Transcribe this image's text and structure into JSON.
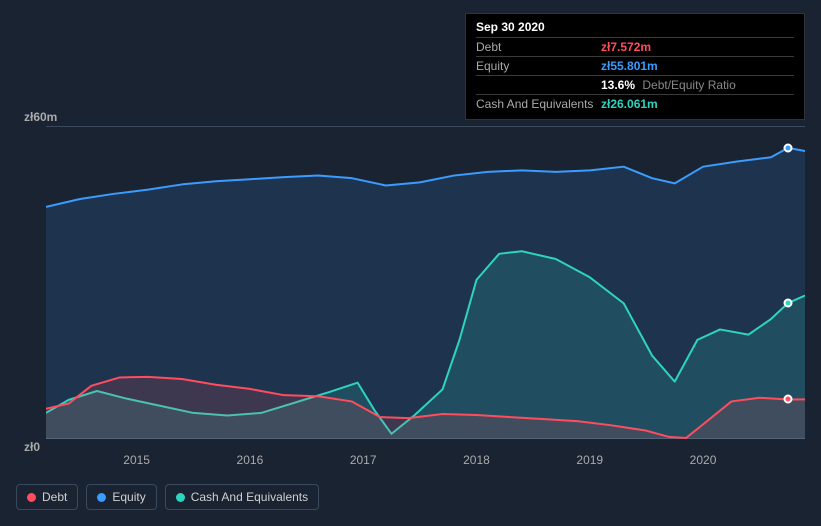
{
  "tooltip": {
    "date": "Sep 30 2020",
    "rows": [
      {
        "label": "Debt",
        "value": "zł7.572m",
        "cls": "debt"
      },
      {
        "label": "Equity",
        "value": "zł55.801m",
        "cls": "equity"
      },
      {
        "label": "",
        "value": "13.6%",
        "sub": "Debt/Equity Ratio",
        "cls": "ratio"
      },
      {
        "label": "Cash And Equivalents",
        "value": "zł26.061m",
        "cls": "cash"
      }
    ]
  },
  "chart": {
    "type": "area",
    "background_color": "#1a2332",
    "grid_color": "#3a4a5c",
    "xlim": [
      2014.2,
      2020.9
    ],
    "ylim": [
      0,
      60
    ],
    "y_ticks": [
      {
        "v": 0,
        "label": "zł0"
      },
      {
        "v": 60,
        "label": "zł60m"
      }
    ],
    "x_ticks": [
      2015,
      2016,
      2017,
      2018,
      2019,
      2020
    ],
    "series": [
      {
        "name": "Equity",
        "color": "#3b9cff",
        "fill": "rgba(59,156,255,0.14)",
        "line_width": 2,
        "data": [
          [
            2014.2,
            44.5
          ],
          [
            2014.5,
            46
          ],
          [
            2014.8,
            47
          ],
          [
            2015.1,
            47.8
          ],
          [
            2015.4,
            48.8
          ],
          [
            2015.7,
            49.4
          ],
          [
            2016.0,
            49.8
          ],
          [
            2016.3,
            50.2
          ],
          [
            2016.6,
            50.5
          ],
          [
            2016.9,
            50
          ],
          [
            2017.2,
            48.6
          ],
          [
            2017.5,
            49.2
          ],
          [
            2017.8,
            50.5
          ],
          [
            2018.1,
            51.2
          ],
          [
            2018.4,
            51.5
          ],
          [
            2018.7,
            51.2
          ],
          [
            2019.0,
            51.5
          ],
          [
            2019.3,
            52.2
          ],
          [
            2019.55,
            50
          ],
          [
            2019.75,
            49
          ],
          [
            2020.0,
            52.2
          ],
          [
            2020.3,
            53.2
          ],
          [
            2020.6,
            54
          ],
          [
            2020.75,
            55.8
          ],
          [
            2020.9,
            55.2
          ]
        ]
      },
      {
        "name": "Cash And Equivalents",
        "color": "#2dd4bf",
        "fill": "rgba(45,212,191,0.16)",
        "line_width": 2,
        "data": [
          [
            2014.2,
            5.0
          ],
          [
            2014.4,
            7.5
          ],
          [
            2014.65,
            9.2
          ],
          [
            2014.9,
            7.8
          ],
          [
            2015.2,
            6.4
          ],
          [
            2015.5,
            5.0
          ],
          [
            2015.8,
            4.5
          ],
          [
            2016.1,
            5.0
          ],
          [
            2016.4,
            7.0
          ],
          [
            2016.7,
            9.0
          ],
          [
            2016.95,
            10.8
          ],
          [
            2017.1,
            5.5
          ],
          [
            2017.25,
            1.0
          ],
          [
            2017.45,
            4.5
          ],
          [
            2017.7,
            9.5
          ],
          [
            2017.85,
            19.0
          ],
          [
            2018.0,
            30.5
          ],
          [
            2018.2,
            35.5
          ],
          [
            2018.4,
            36.0
          ],
          [
            2018.7,
            34.5
          ],
          [
            2019.0,
            31.0
          ],
          [
            2019.3,
            26.0
          ],
          [
            2019.55,
            16.0
          ],
          [
            2019.75,
            11.0
          ],
          [
            2019.95,
            19.0
          ],
          [
            2020.15,
            21.0
          ],
          [
            2020.4,
            20.0
          ],
          [
            2020.6,
            23.0
          ],
          [
            2020.75,
            26.06
          ],
          [
            2020.9,
            27.5
          ]
        ]
      },
      {
        "name": "Debt",
        "color": "#ff4d5e",
        "fill": "rgba(255,77,94,0.14)",
        "line_width": 2,
        "data": [
          [
            2014.2,
            5.8
          ],
          [
            2014.4,
            6.8
          ],
          [
            2014.6,
            10.2
          ],
          [
            2014.85,
            11.8
          ],
          [
            2015.1,
            11.9
          ],
          [
            2015.4,
            11.5
          ],
          [
            2015.7,
            10.4
          ],
          [
            2016.0,
            9.6
          ],
          [
            2016.3,
            8.4
          ],
          [
            2016.6,
            8.2
          ],
          [
            2016.9,
            7.2
          ],
          [
            2017.15,
            4.2
          ],
          [
            2017.4,
            4.0
          ],
          [
            2017.7,
            4.8
          ],
          [
            2018.0,
            4.6
          ],
          [
            2018.3,
            4.2
          ],
          [
            2018.6,
            3.8
          ],
          [
            2018.9,
            3.4
          ],
          [
            2019.2,
            2.6
          ],
          [
            2019.5,
            1.6
          ],
          [
            2019.7,
            0.4
          ],
          [
            2019.85,
            0.2
          ],
          [
            2020.0,
            2.8
          ],
          [
            2020.25,
            7.2
          ],
          [
            2020.5,
            7.9
          ],
          [
            2020.75,
            7.572
          ],
          [
            2020.9,
            7.6
          ]
        ]
      }
    ],
    "markers_x": 2020.75,
    "legend": [
      {
        "label": "Debt",
        "color": "#ff4d5e"
      },
      {
        "label": "Equity",
        "color": "#3b9cff"
      },
      {
        "label": "Cash And Equivalents",
        "color": "#2dd4bf"
      }
    ],
    "label_fontsize": 12
  }
}
